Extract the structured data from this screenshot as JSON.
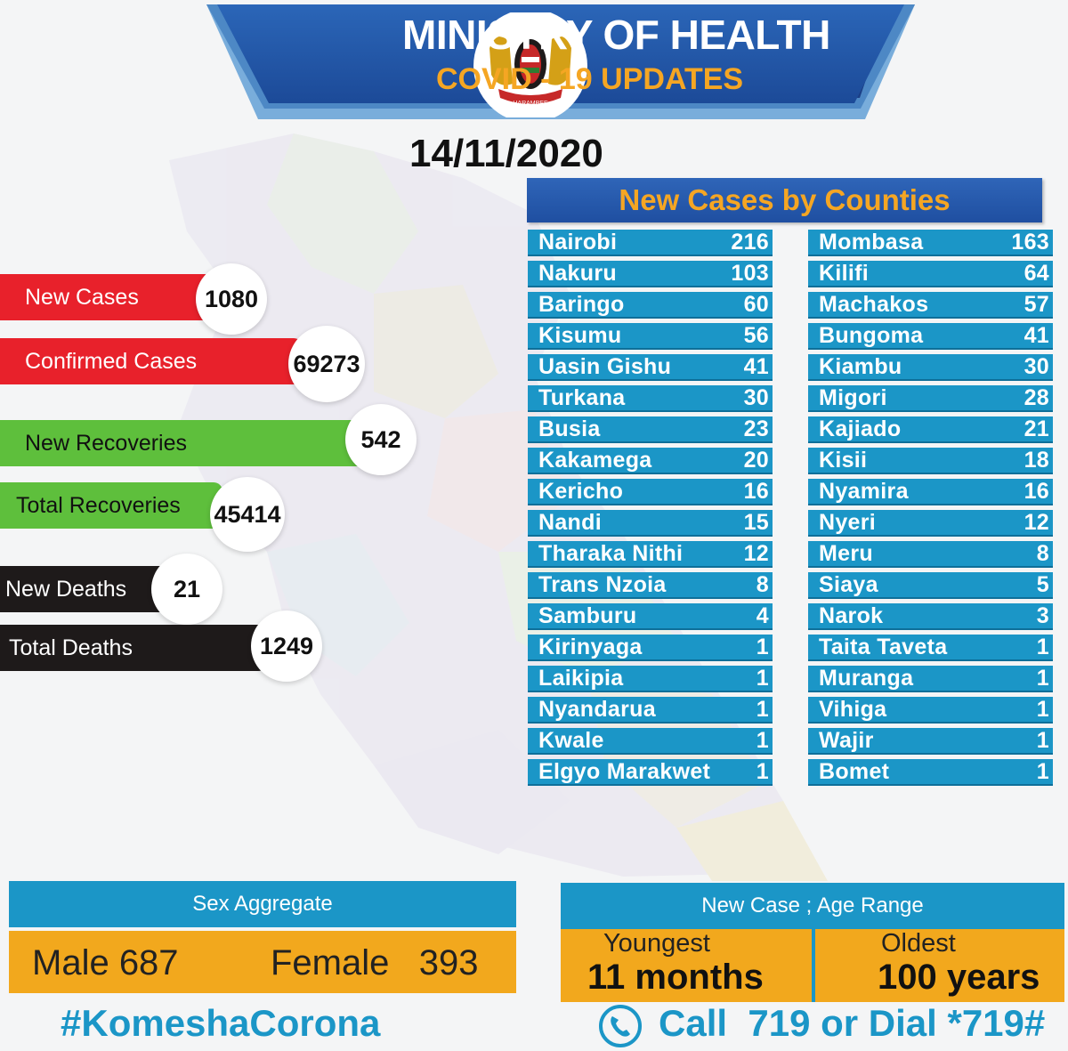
{
  "header": {
    "title": "MINISTRY OF HEALTH",
    "subtitle": "COVID - 19 UPDATES",
    "emblem_text": "HARAMBEE"
  },
  "date": "14/11/2020",
  "stats": {
    "new_cases": {
      "label": "New Cases",
      "value": "1080"
    },
    "confirmed_cases": {
      "label": "Confirmed Cases",
      "value": "69273"
    },
    "new_recoveries": {
      "label": "New Recoveries",
      "value": "542"
    },
    "total_recoveries": {
      "label": "Total Recoveries",
      "value": "45414"
    },
    "new_deaths": {
      "label": "New Deaths",
      "value": "21"
    },
    "total_deaths": {
      "label": "Total Deaths",
      "value": "1249"
    }
  },
  "counties": {
    "title": "New Cases by Counties",
    "left": [
      {
        "name": "Nairobi",
        "count": "216"
      },
      {
        "name": "Nakuru",
        "count": "103"
      },
      {
        "name": "Baringo",
        "count": "60"
      },
      {
        "name": "Kisumu",
        "count": "56"
      },
      {
        "name": "Uasin Gishu",
        "count": "41"
      },
      {
        "name": "Turkana",
        "count": "30"
      },
      {
        "name": "Busia",
        "count": "23"
      },
      {
        "name": "Kakamega",
        "count": "20"
      },
      {
        "name": "Kericho",
        "count": "16"
      },
      {
        "name": "Nandi",
        "count": "15"
      },
      {
        "name": "Tharaka Nithi",
        "count": "12"
      },
      {
        "name": "Trans Nzoia",
        "count": "8"
      },
      {
        "name": "Samburu",
        "count": "4"
      },
      {
        "name": "Kirinyaga",
        "count": "1"
      },
      {
        "name": "Laikipia",
        "count": "1"
      },
      {
        "name": "Nyandarua",
        "count": "1"
      },
      {
        "name": "Kwale",
        "count": "1"
      },
      {
        "name": "Elgyo Marakwet",
        "count": "1"
      }
    ],
    "right": [
      {
        "name": "Mombasa",
        "count": "163"
      },
      {
        "name": "Kilifi",
        "count": "64"
      },
      {
        "name": "Machakos",
        "count": "57"
      },
      {
        "name": "Bungoma",
        "count": "41"
      },
      {
        "name": "Kiambu",
        "count": "30"
      },
      {
        "name": "Migori",
        "count": "28"
      },
      {
        "name": "Kajiado",
        "count": "21"
      },
      {
        "name": "Kisii",
        "count": "18"
      },
      {
        "name": "Nyamira",
        "count": "16"
      },
      {
        "name": "Nyeri",
        "count": "12"
      },
      {
        "name": "Meru",
        "count": "8"
      },
      {
        "name": "Siaya",
        "count": "5"
      },
      {
        "name": "Narok",
        "count": "3"
      },
      {
        "name": "Taita Taveta",
        "count": "1"
      },
      {
        "name": "Muranga",
        "count": "1"
      },
      {
        "name": "Vihiga",
        "count": "1"
      },
      {
        "name": "Wajir",
        "count": "1"
      },
      {
        "name": "Bomet",
        "count": "1"
      }
    ]
  },
  "sex_aggregate": {
    "title": "Sex Aggregate",
    "male": "Male 687",
    "female": "Female   393"
  },
  "age_range": {
    "title": "New Case ; Age Range",
    "youngest_label": "Youngest",
    "youngest_value": "11 months",
    "oldest_label": "Oldest",
    "oldest_value": "100 years"
  },
  "footer": {
    "hashtag": "#KomeshaCorona",
    "call": "Call  719 or Dial *719#"
  },
  "colors": {
    "red": "#e8212b",
    "green": "#5ebf3c",
    "black": "#1e1a1a",
    "blue": "#1b96c7",
    "orange": "#f2a81d",
    "navy": "#1f4fa1"
  }
}
